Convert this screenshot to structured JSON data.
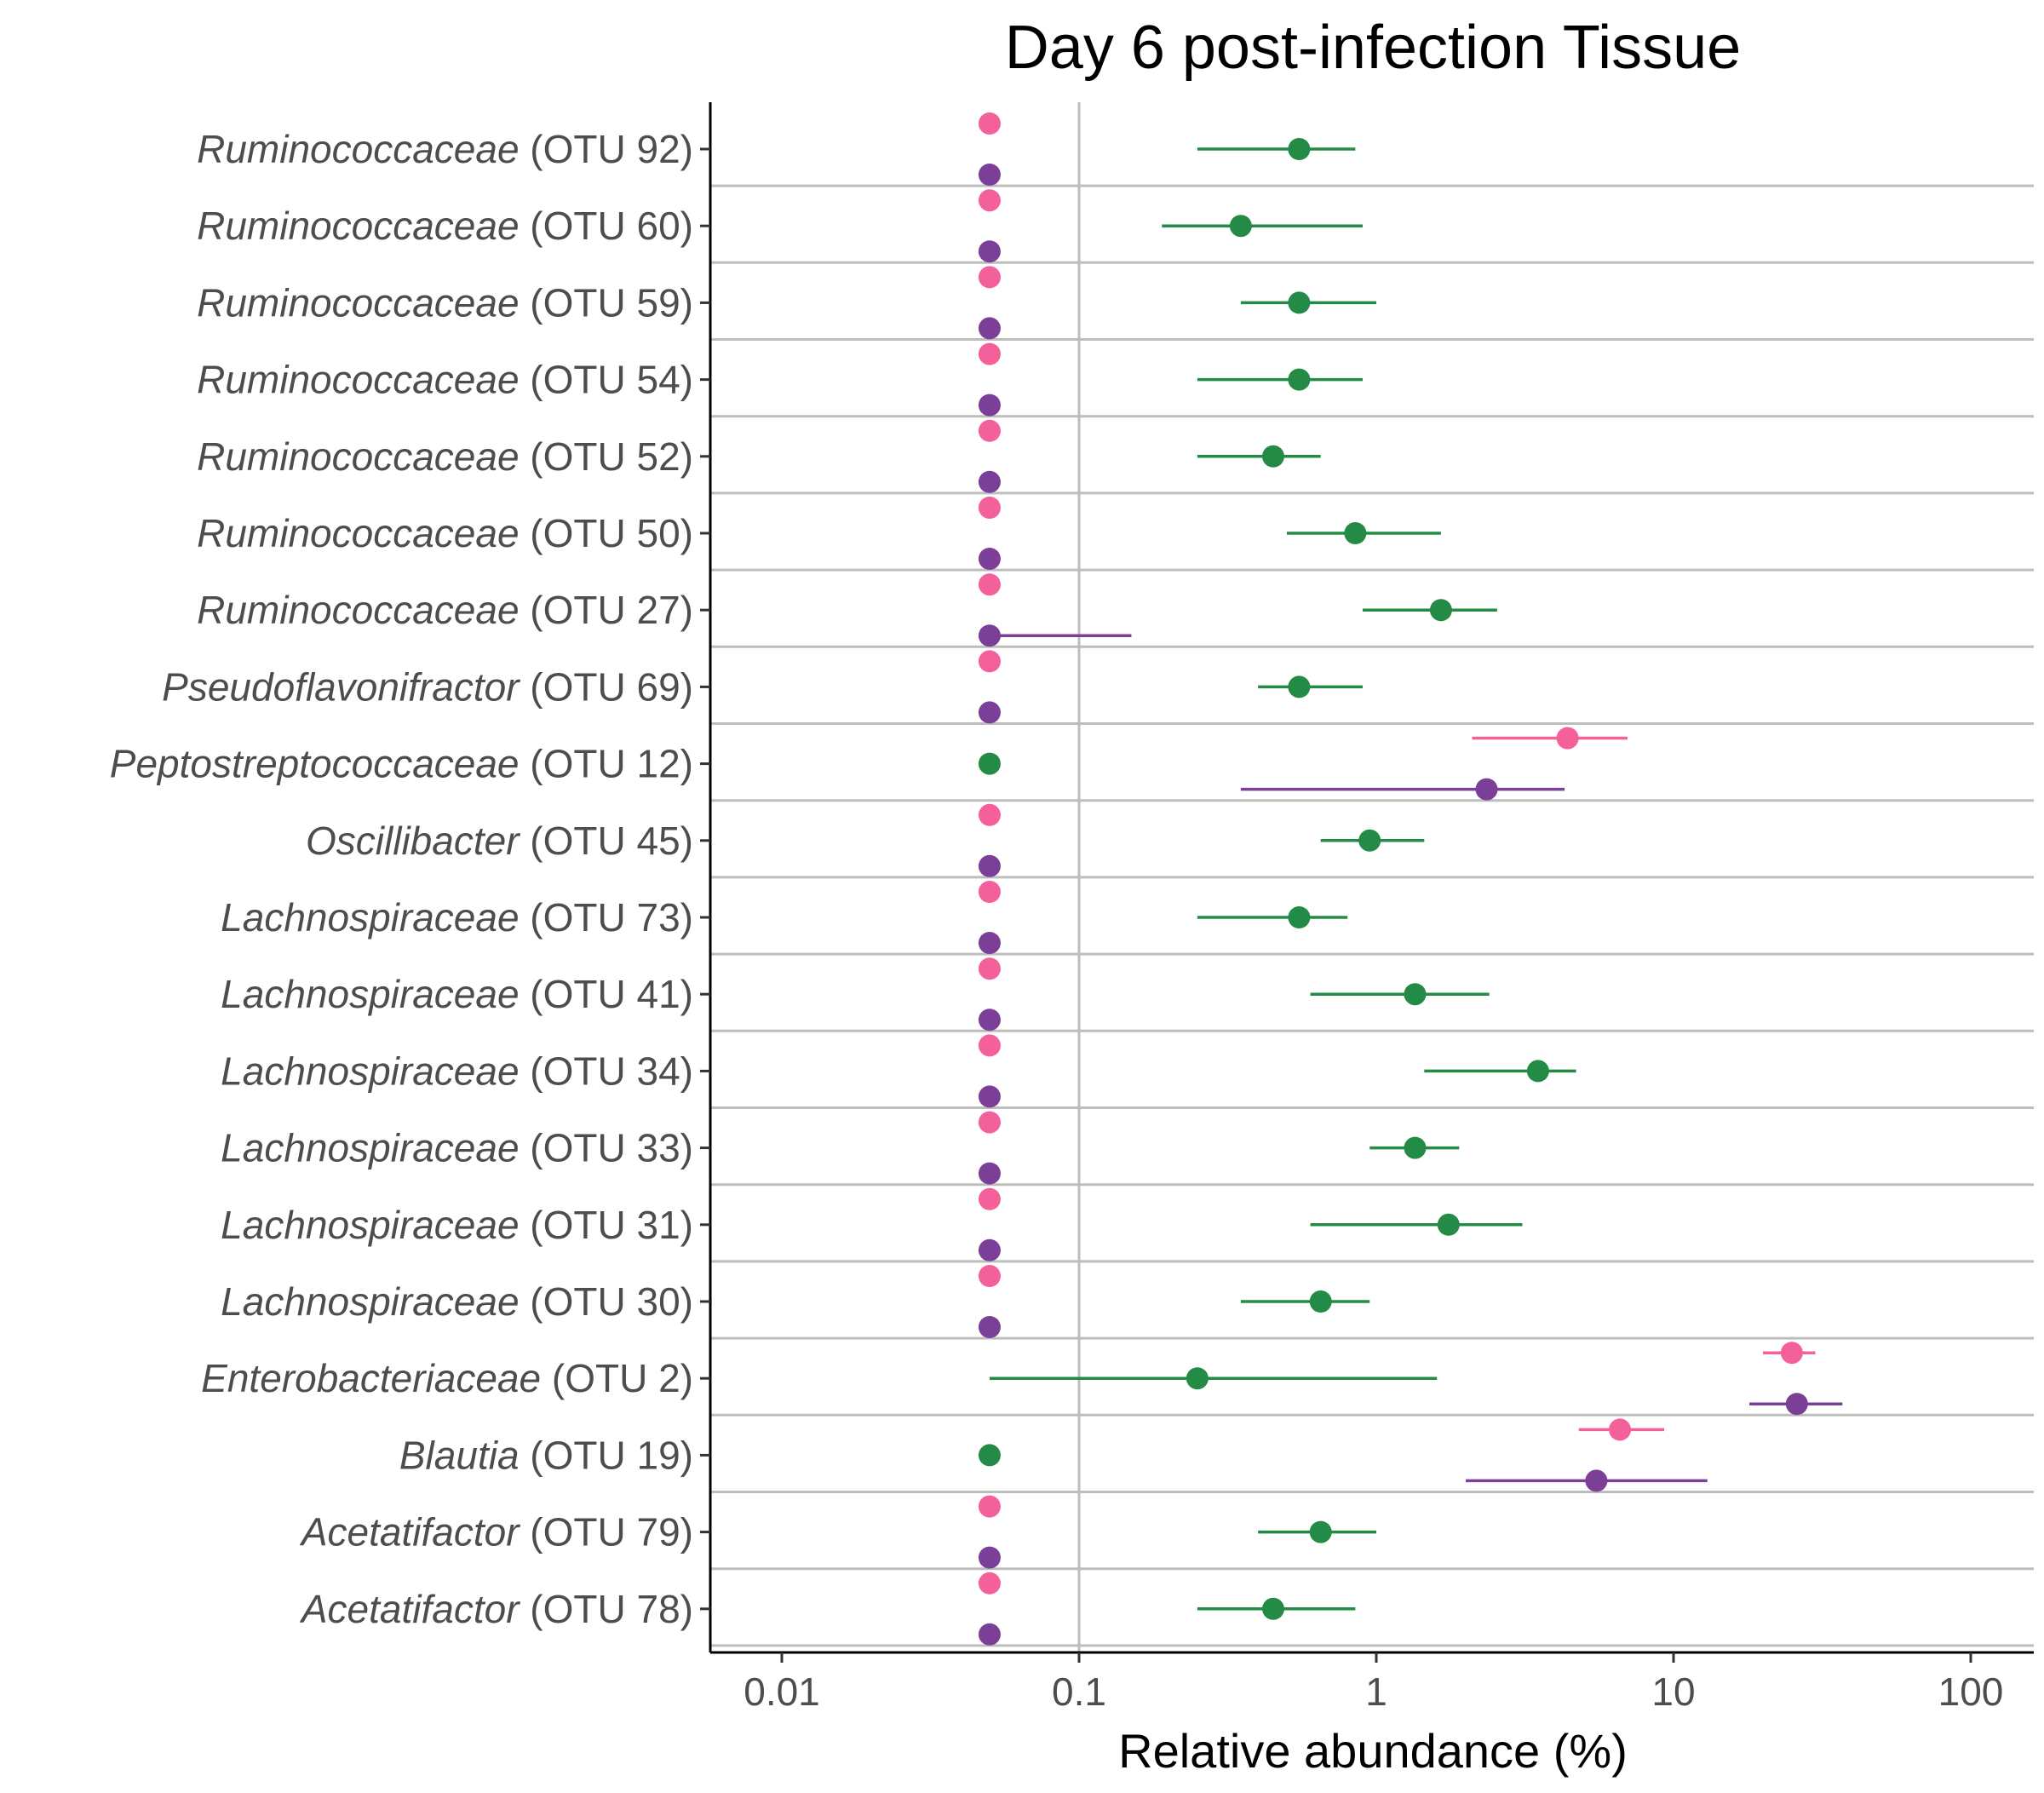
{
  "chart_data": {
    "type": "scatter",
    "title": "Day 6 post-infection Tissue",
    "xlabel": "Relative abundance (%)",
    "ylabel": "",
    "x_scale": "log10",
    "xlim": [
      0.005,
      130
    ],
    "x_ticks": [
      0.01,
      0.1,
      1,
      10,
      100
    ],
    "x_tick_labels": [
      "0.01",
      "0.1",
      "1",
      "10",
      "100"
    ],
    "grid": "vertical major line at 0.1; horizontal separators between categories",
    "legend": "none",
    "colors": {
      "pink": "#f3609a",
      "green": "#238b45",
      "purple": "#7b3f98"
    },
    "series_order_top_to_bottom": [
      "pink",
      "green",
      "purple"
    ],
    "categories": [
      {
        "genus": "Ruminococcaceae",
        "otu": " (OTU 92)",
        "points": [
          {
            "color": "pink",
            "x": 0.05
          },
          {
            "color": "green",
            "x": 0.55,
            "lo": 0.25,
            "hi": 0.85
          },
          {
            "color": "purple",
            "x": 0.05
          }
        ]
      },
      {
        "genus": "Ruminococcaceae",
        "otu": " (OTU 60)",
        "points": [
          {
            "color": "pink",
            "x": 0.05
          },
          {
            "color": "green",
            "x": 0.35,
            "lo": 0.19,
            "hi": 0.9
          },
          {
            "color": "purple",
            "x": 0.05
          }
        ]
      },
      {
        "genus": "Ruminococcaceae",
        "otu": " (OTU 59)",
        "points": [
          {
            "color": "pink",
            "x": 0.05
          },
          {
            "color": "green",
            "x": 0.55,
            "lo": 0.35,
            "hi": 1.0
          },
          {
            "color": "purple",
            "x": 0.05
          }
        ]
      },
      {
        "genus": "Ruminococcaceae",
        "otu": " (OTU 54)",
        "points": [
          {
            "color": "pink",
            "x": 0.05
          },
          {
            "color": "green",
            "x": 0.55,
            "lo": 0.25,
            "hi": 0.9
          },
          {
            "color": "purple",
            "x": 0.05
          }
        ]
      },
      {
        "genus": "Ruminococcaceae",
        "otu": " (OTU 52)",
        "points": [
          {
            "color": "pink",
            "x": 0.05
          },
          {
            "color": "green",
            "x": 0.45,
            "lo": 0.25,
            "hi": 0.65
          },
          {
            "color": "purple",
            "x": 0.05
          }
        ]
      },
      {
        "genus": "Ruminococcaceae",
        "otu": " (OTU 50)",
        "points": [
          {
            "color": "pink",
            "x": 0.05
          },
          {
            "color": "green",
            "x": 0.85,
            "lo": 0.5,
            "hi": 1.65
          },
          {
            "color": "purple",
            "x": 0.05
          }
        ]
      },
      {
        "genus": "Ruminococcaceae",
        "otu": " (OTU 27)",
        "points": [
          {
            "color": "pink",
            "x": 0.05
          },
          {
            "color": "green",
            "x": 1.65,
            "lo": 0.9,
            "hi": 2.55
          },
          {
            "color": "purple",
            "x": 0.05,
            "lo": 0.05,
            "hi": 0.15
          }
        ]
      },
      {
        "genus": "Pseudoflavonifractor",
        "otu": " (OTU 69)",
        "points": [
          {
            "color": "pink",
            "x": 0.05
          },
          {
            "color": "green",
            "x": 0.55,
            "lo": 0.4,
            "hi": 0.9
          },
          {
            "color": "purple",
            "x": 0.05
          }
        ]
      },
      {
        "genus": "Peptostreptococcaceae",
        "otu": " (OTU 12)",
        "points": [
          {
            "color": "pink",
            "x": 4.4,
            "lo": 2.1,
            "hi": 7.0
          },
          {
            "color": "green",
            "x": 0.05
          },
          {
            "color": "purple",
            "x": 2.35,
            "lo": 0.35,
            "hi": 4.3
          }
        ]
      },
      {
        "genus": "Oscillibacter",
        "otu": " (OTU 45)",
        "points": [
          {
            "color": "pink",
            "x": 0.05
          },
          {
            "color": "green",
            "x": 0.95,
            "lo": 0.65,
            "hi": 1.45
          },
          {
            "color": "purple",
            "x": 0.05
          }
        ]
      },
      {
        "genus": "Lachnospiraceae",
        "otu": " (OTU 73)",
        "points": [
          {
            "color": "pink",
            "x": 0.05
          },
          {
            "color": "green",
            "x": 0.55,
            "lo": 0.25,
            "hi": 0.8
          },
          {
            "color": "purple",
            "x": 0.05
          }
        ]
      },
      {
        "genus": "Lachnospiraceae",
        "otu": " (OTU 41)",
        "points": [
          {
            "color": "pink",
            "x": 0.05
          },
          {
            "color": "green",
            "x": 1.35,
            "lo": 0.6,
            "hi": 2.4
          },
          {
            "color": "purple",
            "x": 0.05
          }
        ]
      },
      {
        "genus": "Lachnospiraceae",
        "otu": " (OTU 34)",
        "points": [
          {
            "color": "pink",
            "x": 0.05
          },
          {
            "color": "green",
            "x": 3.5,
            "lo": 1.45,
            "hi": 4.7
          },
          {
            "color": "purple",
            "x": 0.05
          }
        ]
      },
      {
        "genus": "Lachnospiraceae",
        "otu": " (OTU 33)",
        "points": [
          {
            "color": "pink",
            "x": 0.05
          },
          {
            "color": "green",
            "x": 1.35,
            "lo": 0.95,
            "hi": 1.9
          },
          {
            "color": "purple",
            "x": 0.05
          }
        ]
      },
      {
        "genus": "Lachnospiraceae",
        "otu": " (OTU 31)",
        "points": [
          {
            "color": "pink",
            "x": 0.05
          },
          {
            "color": "green",
            "x": 1.75,
            "lo": 0.6,
            "hi": 3.1
          },
          {
            "color": "purple",
            "x": 0.05
          }
        ]
      },
      {
        "genus": "Lachnospiraceae",
        "otu": " (OTU 30)",
        "points": [
          {
            "color": "pink",
            "x": 0.05
          },
          {
            "color": "green",
            "x": 0.65,
            "lo": 0.35,
            "hi": 0.95
          },
          {
            "color": "purple",
            "x": 0.05
          }
        ]
      },
      {
        "genus": "Enterobacteriaceae",
        "otu": " (OTU 2)",
        "points": [
          {
            "color": "pink",
            "x": 25,
            "lo": 20,
            "hi": 30
          },
          {
            "color": "green",
            "x": 0.25,
            "lo": 0.05,
            "hi": 1.6
          },
          {
            "color": "purple",
            "x": 26,
            "lo": 18,
            "hi": 37
          }
        ]
      },
      {
        "genus": "Blautia",
        "otu": " (OTU 19)",
        "points": [
          {
            "color": "pink",
            "x": 6.6,
            "lo": 4.8,
            "hi": 9.3
          },
          {
            "color": "green",
            "x": 0.05
          },
          {
            "color": "purple",
            "x": 5.5,
            "lo": 2.0,
            "hi": 13
          }
        ]
      },
      {
        "genus": "Acetatifactor",
        "otu": " (OTU 79)",
        "points": [
          {
            "color": "pink",
            "x": 0.05
          },
          {
            "color": "green",
            "x": 0.65,
            "lo": 0.4,
            "hi": 1.0
          },
          {
            "color": "purple",
            "x": 0.05
          }
        ]
      },
      {
        "genus": "Acetatifactor",
        "otu": " (OTU 78)",
        "points": [
          {
            "color": "pink",
            "x": 0.05
          },
          {
            "color": "green",
            "x": 0.45,
            "lo": 0.25,
            "hi": 0.85
          },
          {
            "color": "purple",
            "x": 0.05
          }
        ]
      }
    ]
  }
}
